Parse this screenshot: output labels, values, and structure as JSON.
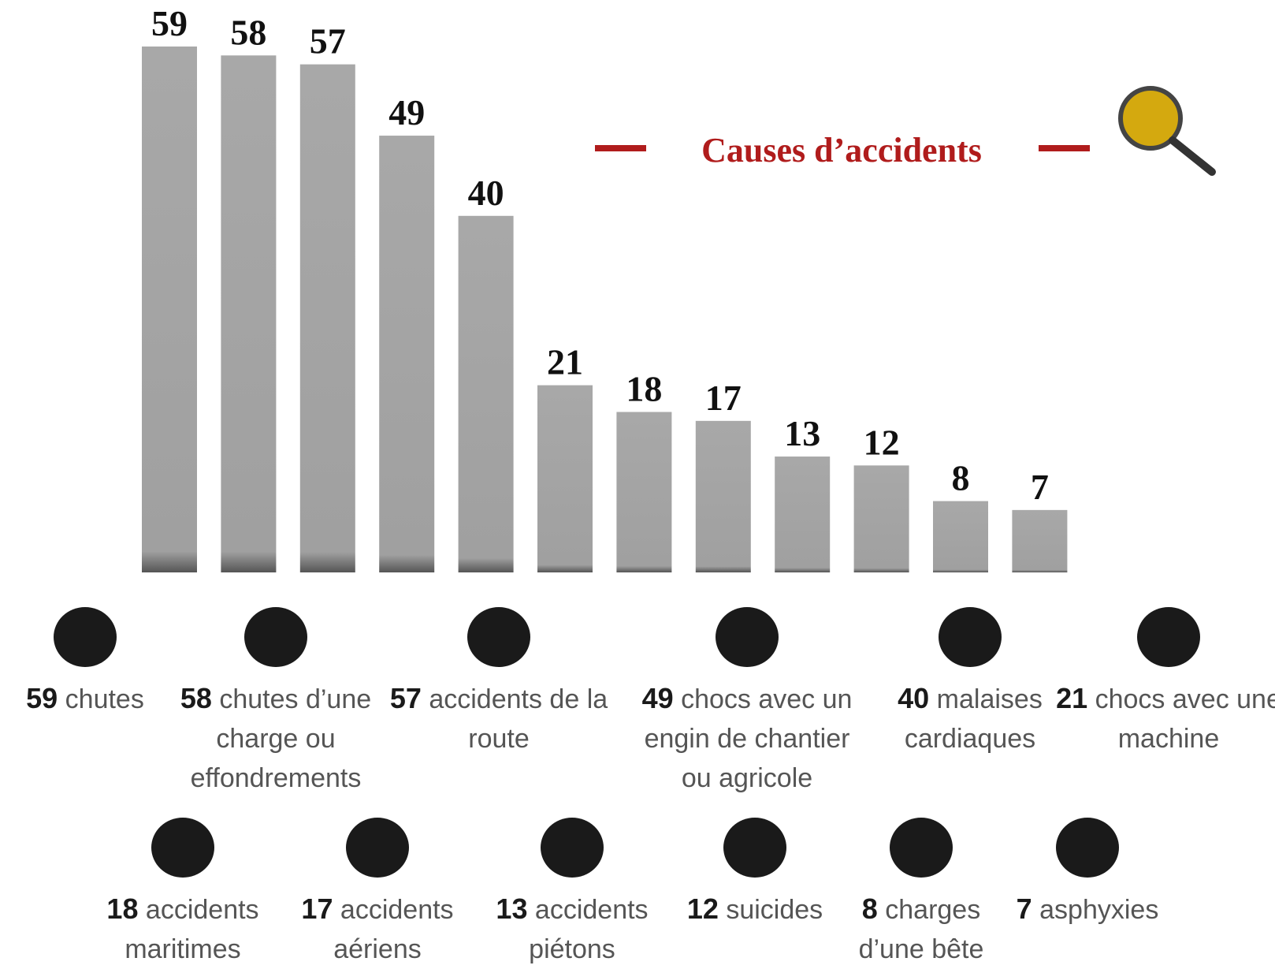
{
  "chart_data": {
    "type": "bar",
    "title": "Causes d’accidents",
    "categories": [
      "chutes",
      "chutes d’une charge ou effondrements",
      "accidents de la route",
      "chocs avec un engin de chantier ou agricole",
      "malaises cardiaques",
      "chocs avec une machine",
      "accidents maritimes",
      "accidents aériens",
      "accidents piétons",
      "suicides",
      "charges d’une bête",
      "asphyxies"
    ],
    "values": [
      59,
      58,
      57,
      49,
      40,
      21,
      18,
      17,
      13,
      12,
      8,
      7
    ],
    "color": "#a6a6a6",
    "title_color": "#b01c1c"
  }
}
